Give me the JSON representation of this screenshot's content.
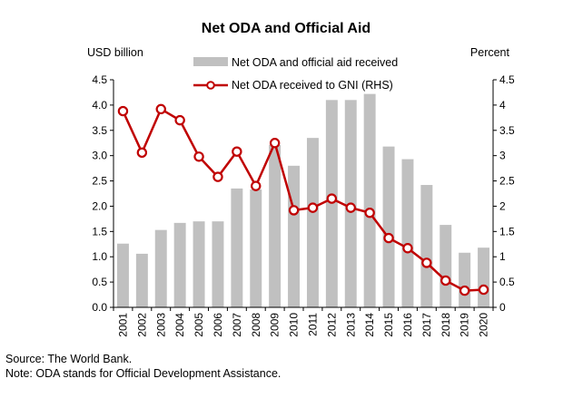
{
  "chart_data": {
    "type": "bar+line",
    "title": "Net ODA and Official Aid",
    "left_axis_label": "USD billion",
    "right_axis_label": "Percent",
    "categories": [
      "2001",
      "2002",
      "2003",
      "2004",
      "2005",
      "2006",
      "2007",
      "2008",
      "2009",
      "2010",
      "2011",
      "2012",
      "2013",
      "2014",
      "2015",
      "2016",
      "2017",
      "2018",
      "2019",
      "2020"
    ],
    "left_ylim": [
      0,
      4.5
    ],
    "right_ylim": [
      0,
      4.5
    ],
    "left_ticks": [
      "0.0",
      "0.5",
      "1.0",
      "1.5",
      "2.0",
      "2.5",
      "3.0",
      "3.5",
      "4.0",
      "4.5"
    ],
    "right_ticks": [
      "0",
      "0.5",
      "1",
      "1.5",
      "2",
      "2.5",
      "3",
      "3.5",
      "4",
      "4.5"
    ],
    "grid": false,
    "legend_position": "top",
    "series": [
      {
        "name": "Net ODA and official aid received",
        "type": "bar",
        "axis": "left",
        "color": "#c0c0c0",
        "values": [
          1.26,
          1.06,
          1.53,
          1.67,
          1.7,
          1.7,
          2.35,
          2.33,
          3.21,
          2.8,
          3.35,
          4.1,
          4.1,
          4.22,
          3.18,
          2.93,
          2.42,
          1.63,
          1.08,
          1.18
        ]
      },
      {
        "name": "Net ODA received to GNI (RHS)",
        "type": "line",
        "axis": "right",
        "color": "#c00000",
        "values": [
          3.88,
          3.06,
          3.92,
          3.7,
          2.98,
          2.58,
          3.08,
          2.4,
          3.25,
          1.92,
          1.97,
          2.15,
          1.97,
          1.87,
          1.37,
          1.17,
          0.88,
          0.53,
          0.33,
          0.35
        ]
      }
    ]
  },
  "footer": {
    "source": "Source: The World Bank.",
    "note": "Note: ODA stands for Official Development Assistance."
  }
}
